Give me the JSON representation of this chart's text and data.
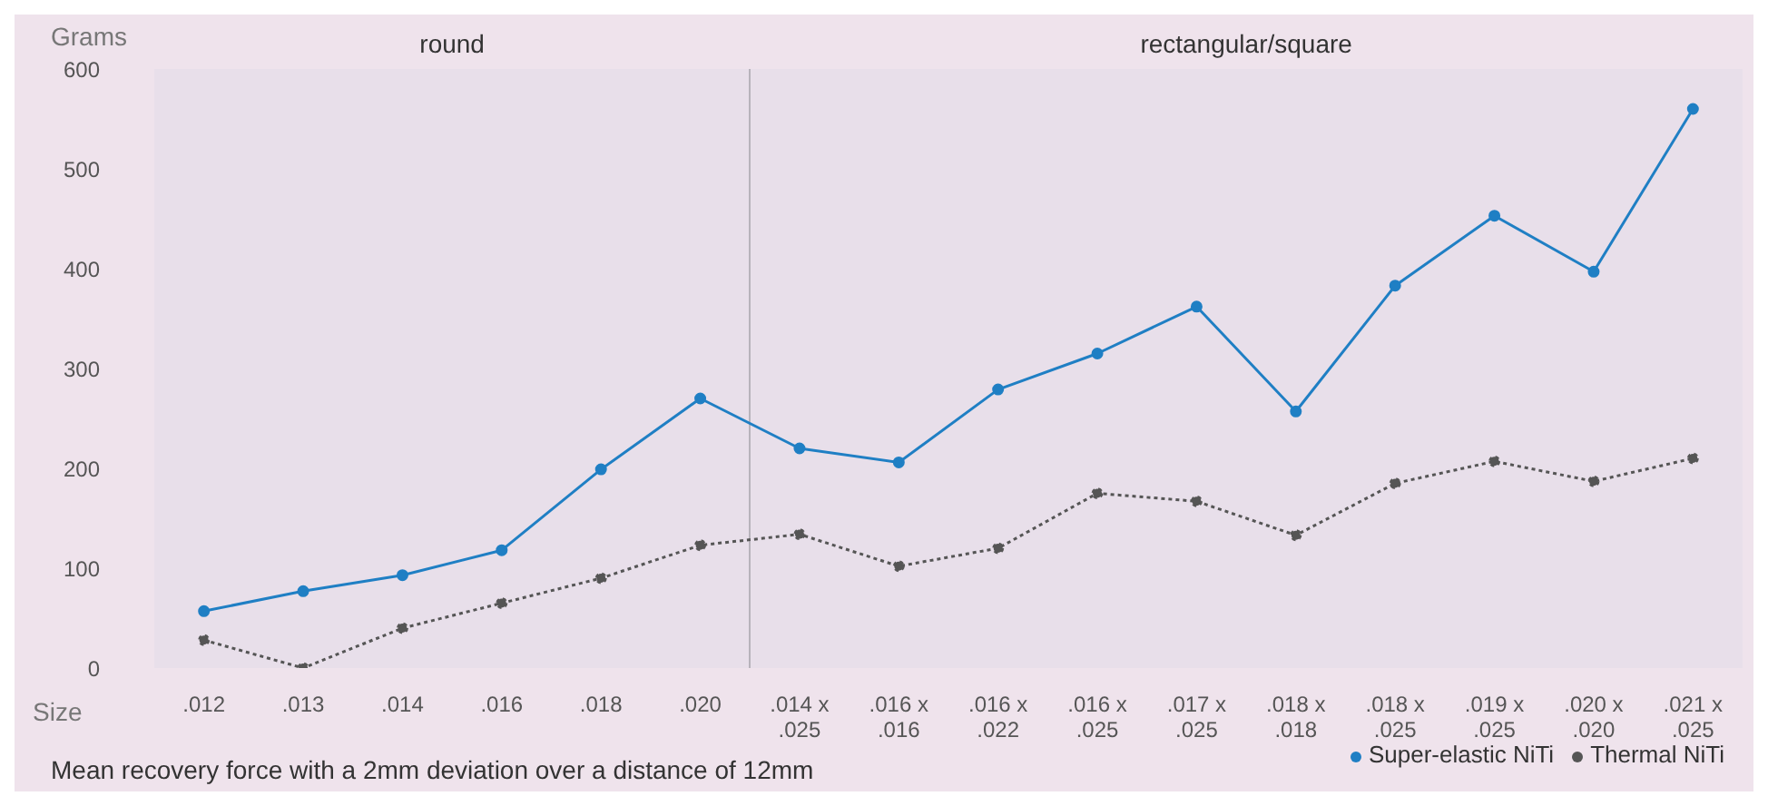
{
  "chart_data": {
    "type": "line",
    "xlabel": "Size",
    "ylabel": "Grams",
    "categories": [
      ".012",
      ".013",
      ".014",
      ".016",
      ".018",
      ".020",
      ".014 x .025",
      ".016 x .016",
      ".016 x .022",
      ".016 x .025",
      ".017 x .025",
      ".018 x .018",
      ".018 x .025",
      ".019 x .025",
      ".020 x .020",
      ".021 x .025"
    ],
    "series": [
      {
        "name": "Super-elastic NiTi",
        "color": "#1f7fc4",
        "line_style": "solid",
        "values": [
          57,
          77,
          93,
          118,
          199,
          270,
          220,
          206,
          279,
          315,
          362,
          257,
          383,
          453,
          397,
          560
        ]
      },
      {
        "name": "Thermal NiTi",
        "color": "#555555",
        "line_style": "dotted",
        "values": [
          28,
          0,
          40,
          65,
          90,
          123,
          134,
          102,
          120,
          175,
          167,
          133,
          185,
          207,
          187,
          210
        ]
      }
    ],
    "ylim": [
      0,
      600
    ],
    "yticks": [
      0,
      100,
      200,
      300,
      400,
      500,
      600
    ],
    "grid": false,
    "marker": "circle",
    "legend": "bottom right",
    "annotations": [
      "round",
      "rectangular/square",
      "Mean recovery force with a 2mm deviation over a distance of 12mm"
    ]
  }
}
